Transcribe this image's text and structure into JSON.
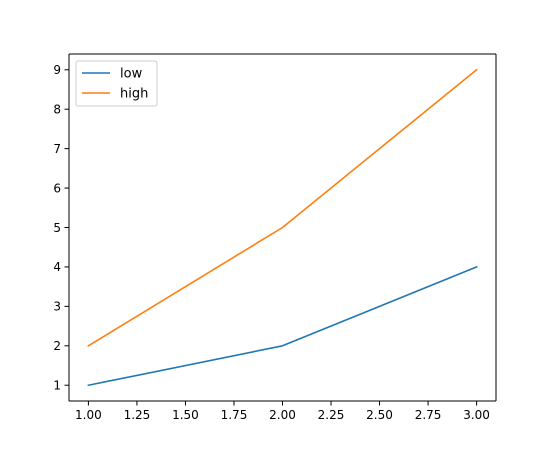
{
  "chart_data": {
    "type": "line",
    "title": "",
    "xlabel": "",
    "ylabel": "",
    "xlim": [
      0.9,
      3.1
    ],
    "ylim": [
      0.6,
      9.4
    ],
    "x_ticks": [
      1.0,
      1.25,
      1.5,
      1.75,
      2.0,
      2.25,
      2.5,
      2.75,
      3.0
    ],
    "x_tick_labels": [
      "1.00",
      "1.25",
      "1.50",
      "1.75",
      "2.00",
      "2.25",
      "2.50",
      "2.75",
      "3.00"
    ],
    "y_ticks": [
      1,
      2,
      3,
      4,
      5,
      6,
      7,
      8,
      9
    ],
    "y_tick_labels": [
      "1",
      "2",
      "3",
      "4",
      "5",
      "6",
      "7",
      "8",
      "9"
    ],
    "grid": false,
    "legend_position": "top-left",
    "x": [
      1,
      2,
      3
    ],
    "series": [
      {
        "name": "low",
        "values": [
          1,
          2,
          4
        ],
        "color": "#1f77b4"
      },
      {
        "name": "high",
        "values": [
          2,
          5,
          9
        ],
        "color": "#ff7f0e"
      }
    ]
  }
}
